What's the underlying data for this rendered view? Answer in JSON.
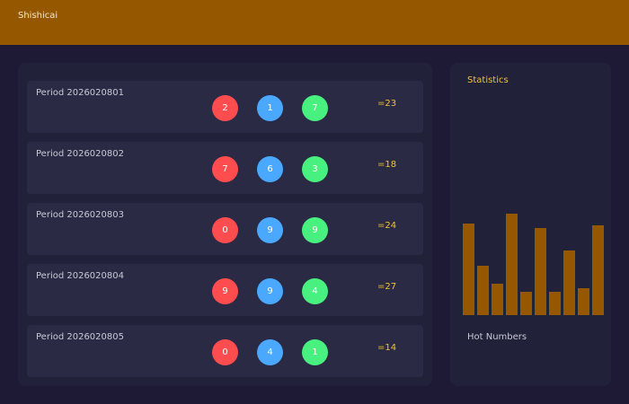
{
  "header": {
    "title": "Shishicai"
  },
  "draws": [
    {
      "period": "Period 2026020801",
      "balls": [
        "2",
        "1",
        "7"
      ],
      "sum": "=23"
    },
    {
      "period": "Period 2026020802",
      "balls": [
        "7",
        "6",
        "3"
      ],
      "sum": "=18"
    },
    {
      "period": "Period 2026020803",
      "balls": [
        "0",
        "9",
        "9"
      ],
      "sum": "=24"
    },
    {
      "period": "Period 2026020804",
      "balls": [
        "9",
        "9",
        "4"
      ],
      "sum": "=27"
    },
    {
      "period": "Period 2026020805",
      "balls": [
        "0",
        "4",
        "1"
      ],
      "sum": "=14"
    }
  ],
  "stats": {
    "title": "Statistics",
    "footer": "Hot Numbers"
  },
  "colors": {
    "accent": "#955800",
    "ball_1": "#ff4d4f",
    "ball_2": "#4aa8ff",
    "ball_3": "#48f07f",
    "sum": "#f2c230"
  },
  "chart_data": {
    "type": "bar",
    "values": [
      102,
      55,
      35,
      113,
      26,
      97,
      26,
      72,
      30,
      100
    ],
    "grid": false
  }
}
